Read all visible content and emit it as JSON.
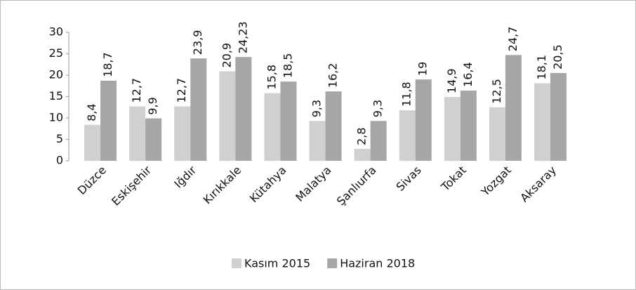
{
  "chart_data": {
    "type": "bar",
    "categories": [
      "Düzce",
      "Eskişehir",
      "Iğdır",
      "Kırıkkale",
      "Kütahya",
      "Malatya",
      "Şanlıurfa",
      "Sivas",
      "Tokat",
      "Yozgat",
      "Aksaray"
    ],
    "series": [
      {
        "name": "Kasım 2015",
        "color": "#d0d0d0",
        "values": [
          8.4,
          12.7,
          12.7,
          20.9,
          15.8,
          9.3,
          2.8,
          11.8,
          14.9,
          12.5,
          18.1
        ],
        "value_labels": [
          "8,4",
          "12,7",
          "12,7",
          "20,9",
          "15,8",
          "9,3",
          "2,8",
          "11,8",
          "14,9",
          "12,5",
          "18,1"
        ]
      },
      {
        "name": "Haziran 2018",
        "color": "#a6a6a6",
        "values": [
          18.7,
          9.9,
          23.9,
          24.23,
          18.5,
          16.2,
          9.3,
          19,
          16.4,
          24.7,
          20.5
        ],
        "value_labels": [
          "18,7",
          "9,9",
          "23,9",
          "24,23",
          "18,5",
          "16,2",
          "9,3",
          "19",
          "16,4",
          "24,7",
          "20,5"
        ]
      }
    ],
    "ylim": [
      0,
      30
    ],
    "yticks": [
      0,
      5,
      10,
      15,
      20,
      25,
      30
    ],
    "grid": false,
    "legend": "bottom"
  }
}
